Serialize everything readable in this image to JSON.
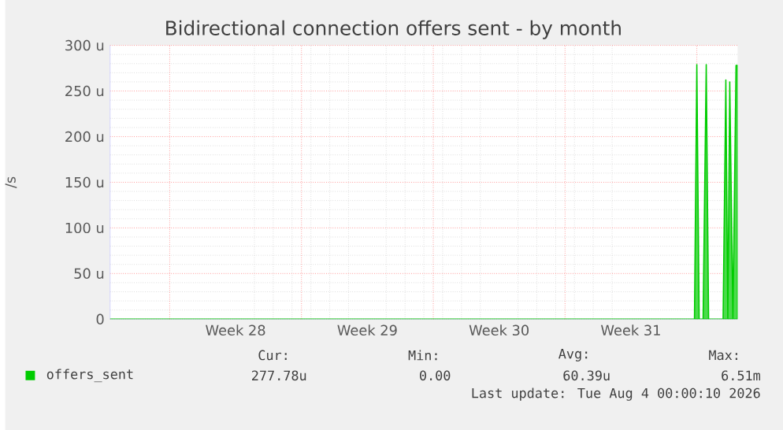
{
  "chart_data": {
    "type": "area",
    "title": "Bidirectional connection offers sent - by month",
    "ylabel": "/s",
    "series": [
      {
        "name": "offers_sent",
        "color": "#00cc00",
        "x": [
          "2026-07-02T20:00",
          "2026-08-02T21:00",
          "2026-08-03T00:00",
          "2026-08-03T03:00",
          "2026-08-03T08:00",
          "2026-08-03T12:00",
          "2026-08-03T15:00",
          "2026-08-04T09:30",
          "2026-08-04T13:00",
          "2026-08-04T15:30",
          "2026-08-04T18:00",
          "2026-08-04T22:00",
          "2026-08-05T02:00",
          "2026-08-05T04:00"
        ],
        "values": [
          0,
          0,
          279,
          0,
          0,
          279,
          0,
          0,
          262,
          0,
          260,
          0,
          278,
          278
        ]
      }
    ],
    "xlim": [
      "2026-07-02T20:00",
      "2026-08-05T04:00"
    ],
    "ylim": [
      0,
      300
    ],
    "xticks": [
      {
        "value": "2026-07-09T12:00",
        "label": "Week 28"
      },
      {
        "value": "2026-07-16T12:00",
        "label": "Week 29"
      },
      {
        "value": "2026-07-23T12:00",
        "label": "Week 30"
      },
      {
        "value": "2026-07-30T12:00",
        "label": "Week 31"
      }
    ],
    "yticks": [
      0,
      {
        "value": 50,
        "label": "50 u"
      },
      {
        "value": 100,
        "label": "100 u"
      },
      {
        "value": 150,
        "label": "150 u"
      },
      {
        "value": 200,
        "label": "200 u"
      },
      {
        "value": 250,
        "label": "250 u"
      },
      {
        "value": 300,
        "label": "300 u"
      }
    ],
    "grid": true,
    "legend": "bottom left",
    "annotations": [
      "Cur:",
      "Min:",
      "Avg:",
      "Max:",
      "277.78u",
      "0.00",
      "60.39u",
      "6.51m",
      "Last update: Tue Aug  4 00:00:10 2026"
    ]
  }
}
